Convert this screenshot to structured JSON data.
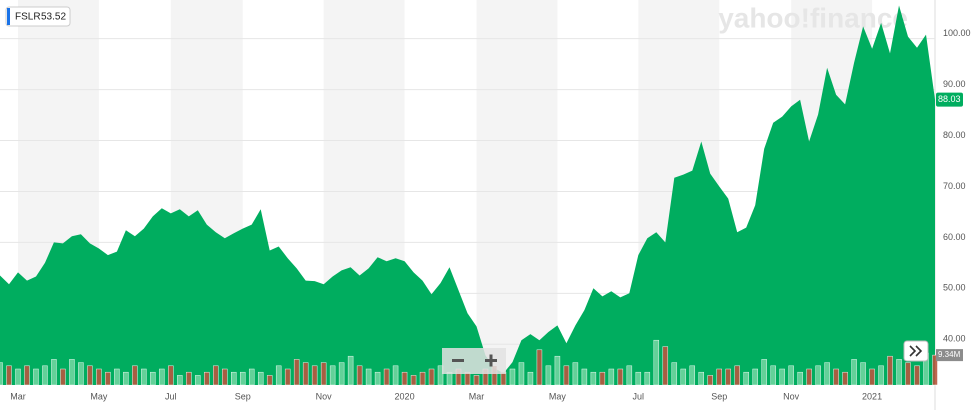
{
  "chart_data": {
    "type": "area",
    "symbol": "FSLR",
    "hover_value": "53.52",
    "watermark": "yahoo!finance",
    "color": "#00ad5f",
    "grid": true,
    "categories": [
      null,
      null,
      "Mar",
      null,
      null,
      null,
      null,
      null,
      null,
      null,
      null,
      "May",
      null,
      null,
      null,
      null,
      null,
      null,
      null,
      "Jul",
      null,
      null,
      null,
      null,
      null,
      null,
      null,
      "Sep",
      null,
      null,
      null,
      null,
      null,
      null,
      null,
      null,
      "Nov",
      null,
      null,
      null,
      null,
      null,
      null,
      null,
      null,
      "2020",
      null,
      null,
      null,
      null,
      null,
      null,
      null,
      "Mar",
      null,
      null,
      null,
      null,
      null,
      null,
      null,
      null,
      "May",
      null,
      null,
      null,
      null,
      null,
      null,
      null,
      null,
      "Jul",
      null,
      null,
      null,
      null,
      null,
      null,
      null,
      null,
      "Sep",
      null,
      null,
      null,
      null,
      null,
      null,
      null,
      "Nov",
      null,
      null,
      null,
      null,
      null,
      null,
      null,
      null,
      "2021",
      null,
      null,
      null,
      null,
      null,
      null,
      null
    ],
    "values": [
      53.5,
      51.8,
      54.1,
      52.5,
      53.3,
      56,
      60,
      59.8,
      61.2,
      61.6,
      59.8,
      58.8,
      57.5,
      58.2,
      62.4,
      61.2,
      62.7,
      65.1,
      66.7,
      65.7,
      66.5,
      65.1,
      66.3,
      63.5,
      62,
      60.8,
      61.8,
      62.7,
      63.5,
      66.5,
      58.4,
      59.2,
      56.9,
      54.9,
      52.5,
      52.4,
      51.8,
      53.3,
      54.5,
      55.1,
      53.5,
      54.9,
      57.1,
      56.3,
      56.9,
      56.3,
      54.1,
      52.5,
      49.8,
      52,
      55.1,
      50.6,
      46.1,
      43.5,
      37.8,
      35.3,
      34.3,
      36.5,
      40.8,
      42,
      40.8,
      42.4,
      43.7,
      40.2,
      43.7,
      46.7,
      51,
      49.4,
      50.4,
      49.2,
      50,
      57.5,
      60.8,
      62,
      60,
      72.7,
      73.3,
      74.1,
      79.8,
      73.5,
      71,
      68.6,
      62,
      62.9,
      67.3,
      78.4,
      83.5,
      84.7,
      86.7,
      88,
      79.8,
      85.1,
      94.3,
      89,
      87.1,
      95.3,
      102.4,
      98,
      103.1,
      97.1,
      106.5,
      100.4,
      98.2,
      100.8,
      88.03
    ],
    "ylim": [
      32,
      107
    ],
    "yticks": [
      {
        "value": 40,
        "label": "40.00"
      },
      {
        "value": 50,
        "label": "50.00"
      },
      {
        "value": 60,
        "label": "60.00"
      },
      {
        "value": 70,
        "label": "70.00"
      },
      {
        "value": 80,
        "label": "80.00"
      },
      {
        "value": 90,
        "label": "90.00"
      },
      {
        "value": 100,
        "label": "100.00"
      }
    ],
    "volume": {
      "up_color": "#6fd6a0",
      "down_color": "#b8573f",
      "lim": [
        0,
        35
      ],
      "last_label": "9.34M",
      "values": [
        7,
        6,
        5,
        6,
        5,
        6,
        8,
        5,
        8,
        7,
        6,
        5,
        4,
        5,
        4,
        6,
        5,
        4,
        5,
        6,
        3,
        4,
        3,
        4,
        6,
        5,
        4,
        4,
        5,
        4,
        3,
        6,
        5,
        8,
        7,
        6,
        7,
        6,
        7,
        9,
        6,
        5,
        4,
        5,
        6,
        4,
        3,
        4,
        5,
        6,
        4,
        5,
        4,
        3,
        5,
        6,
        4,
        5,
        7,
        4,
        11,
        6,
        9,
        6,
        7,
        5,
        4,
        4,
        5,
        5,
        6,
        4,
        4,
        14,
        12,
        7,
        5,
        6,
        4,
        3,
        5,
        5,
        6,
        4,
        5,
        8,
        6,
        5,
        6,
        4,
        5,
        6,
        7,
        5,
        4,
        8,
        7,
        5,
        6,
        9,
        8,
        7,
        6,
        10,
        9.34
      ]
    }
  }
}
